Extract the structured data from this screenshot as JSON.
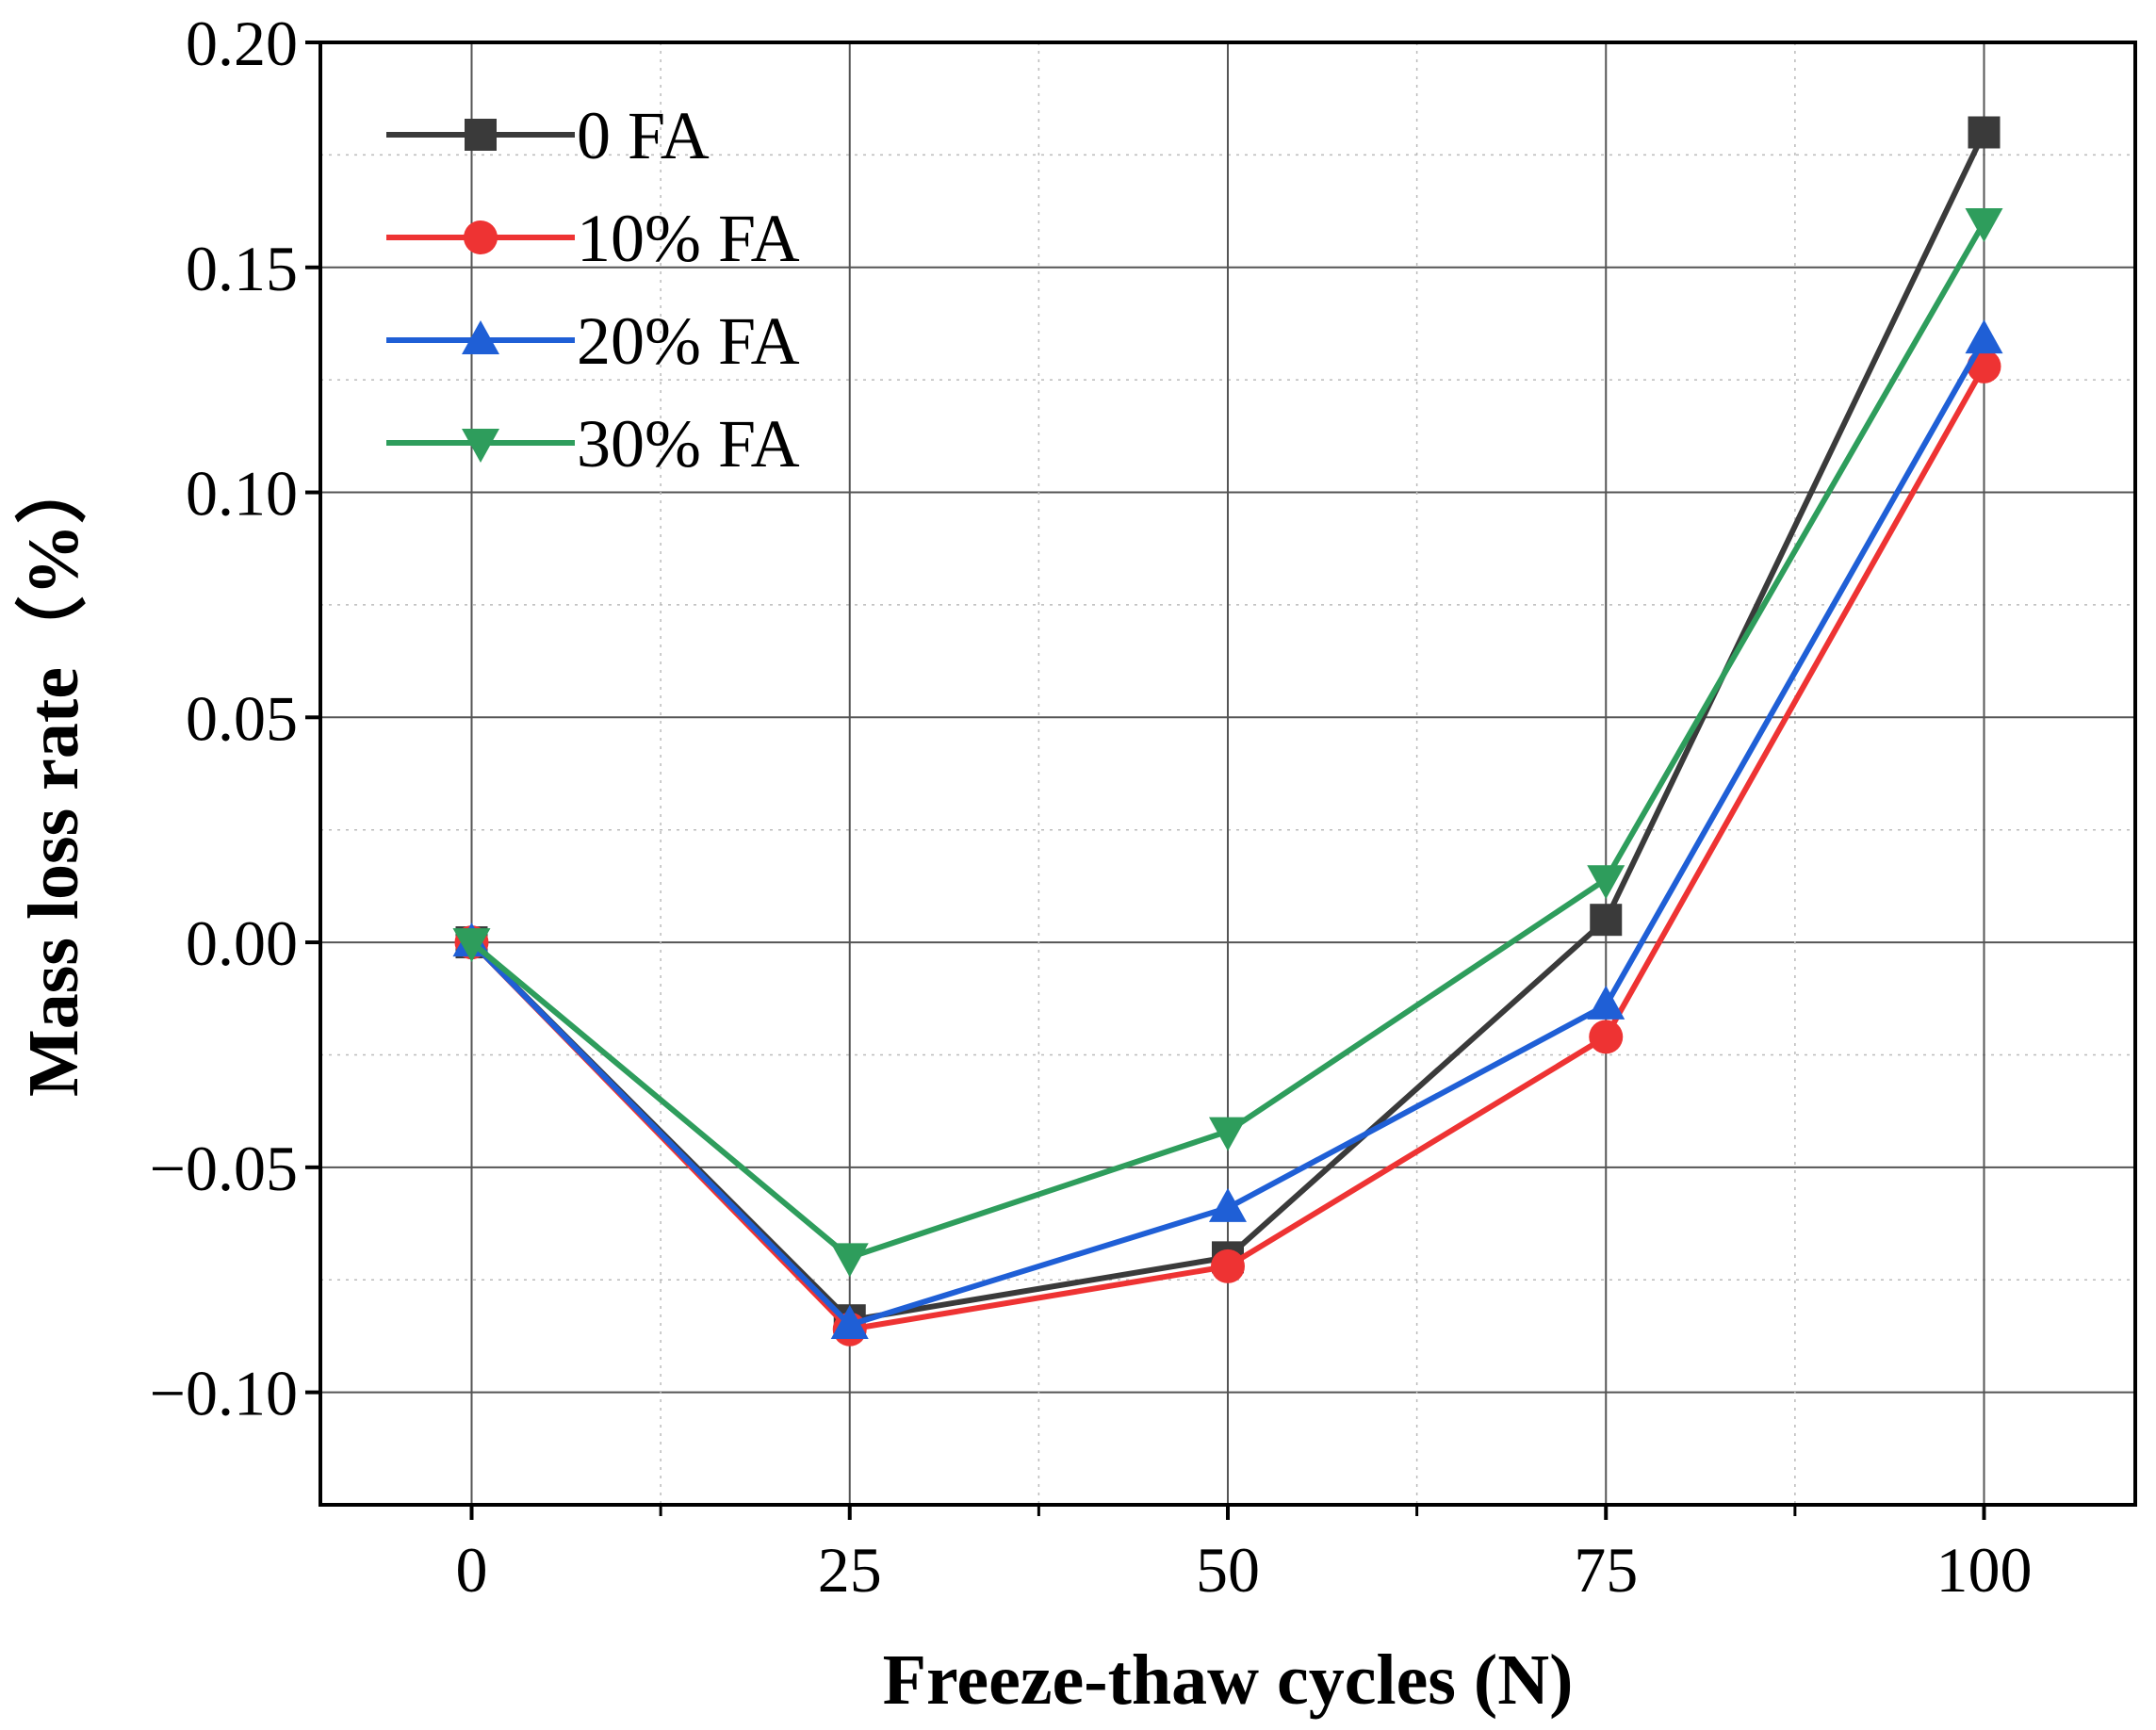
{
  "chart_data": {
    "type": "line",
    "title": "",
    "xlabel": "Freeze-thaw cycles (N)",
    "ylabel": "Mass loss rate（%）",
    "x": [
      0,
      25,
      50,
      75,
      100
    ],
    "x_tick_labels": [
      "0",
      "25",
      "50",
      "75",
      "100"
    ],
    "xlim": [
      -10,
      110
    ],
    "ylim": [
      -0.125,
      0.2
    ],
    "y_ticks": [
      0.2,
      0.15,
      0.1,
      0.05,
      0.0,
      -0.05,
      -0.1
    ],
    "y_tick_labels": [
      "0.20",
      "0.15",
      "0.10",
      "0.05",
      "0.00",
      "−0.05",
      "−0.10"
    ],
    "grid": true,
    "legend_position": "top-left",
    "series": [
      {
        "name": "0 FA",
        "color": "#3a3a3a",
        "marker": "square",
        "values": [
          0.0,
          -0.084,
          -0.07,
          0.005,
          0.18
        ]
      },
      {
        "name": "10% FA",
        "color": "#ee3333",
        "marker": "circle",
        "values": [
          0.0,
          -0.086,
          -0.072,
          -0.021,
          0.128
        ]
      },
      {
        "name": "20% FA",
        "color": "#1f5fd6",
        "marker": "triangle-up",
        "values": [
          0.0,
          -0.085,
          -0.059,
          -0.014,
          0.134
        ]
      },
      {
        "name": "30% FA",
        "color": "#2e9d5c",
        "marker": "triangle-down",
        "values": [
          0.0,
          -0.07,
          -0.042,
          0.014,
          0.16
        ]
      }
    ]
  }
}
